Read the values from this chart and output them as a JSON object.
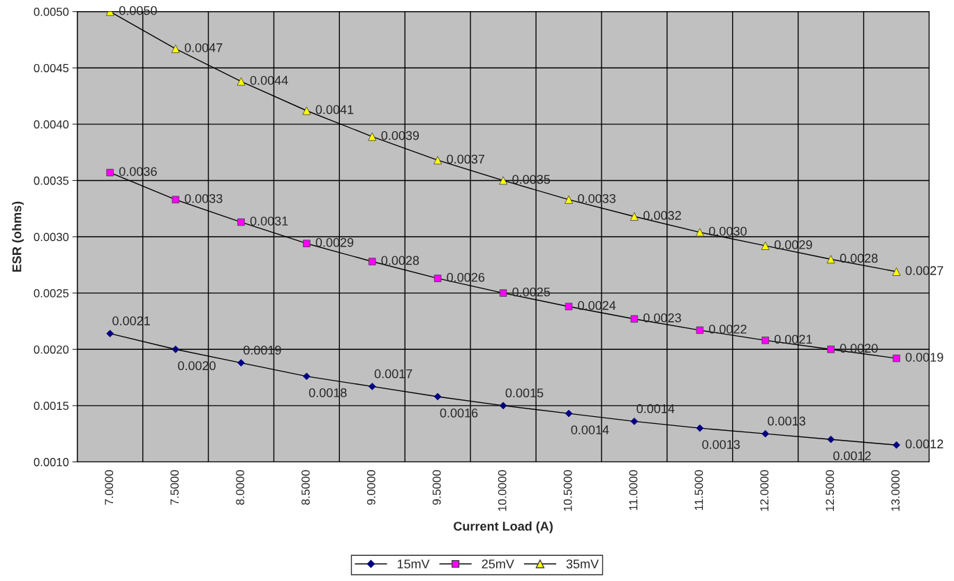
{
  "chart_data": {
    "type": "line",
    "xlabel": "Current Load (A)",
    "ylabel": "ESR (ohms)",
    "categories": [
      "7.0000",
      "7.5000",
      "8.0000",
      "8.5000",
      "9.0000",
      "9.5000",
      "10.0000",
      "10.5000",
      "11.0000",
      "11.5000",
      "12.0000",
      "12.5000",
      "13.0000"
    ],
    "series": [
      {
        "name": "15mV",
        "color": "#000080",
        "marker": "diamond",
        "values": [
          0.00214,
          0.002,
          0.00188,
          0.00176,
          0.00167,
          0.00158,
          0.0015,
          0.00143,
          0.00136,
          0.0013,
          0.00125,
          0.0012,
          0.00115
        ],
        "value_labels": [
          "0.0021",
          "0.0020",
          "0.0019",
          "0.0018",
          "0.0017",
          "0.0016",
          "0.0015",
          "0.0014",
          "0.0014",
          "0.0013",
          "0.0013",
          "0.0012",
          "0.0012"
        ]
      },
      {
        "name": "25mV",
        "color": "#ff00ff",
        "marker": "square",
        "values": [
          0.00357,
          0.00333,
          0.00313,
          0.00294,
          0.00278,
          0.00263,
          0.0025,
          0.00238,
          0.00227,
          0.00217,
          0.00208,
          0.002,
          0.00192
        ],
        "value_labels": [
          "0.0036",
          "0.0033",
          "0.0031",
          "0.0029",
          "0.0028",
          "0.0026",
          "0.0025",
          "0.0024",
          "0.0023",
          "0.0022",
          "0.0021",
          "0.0020",
          "0.0019"
        ]
      },
      {
        "name": "35mV",
        "color": "#ffff00",
        "marker": "triangle",
        "values": [
          0.005,
          0.00467,
          0.00438,
          0.00412,
          0.00389,
          0.00368,
          0.0035,
          0.00333,
          0.00318,
          0.00304,
          0.00292,
          0.0028,
          0.00269
        ],
        "value_labels": [
          "0.0050",
          "0.0047",
          "0.0044",
          "0.0041",
          "0.0039",
          "0.0037",
          "0.0035",
          "0.0033",
          "0.0032",
          "0.0030",
          "0.0029",
          "0.0028",
          "0.0027"
        ]
      }
    ],
    "ylim": [
      0.001,
      0.005
    ],
    "yticks": [
      {
        "value": 0.001,
        "label": "0.0010"
      },
      {
        "value": 0.0015,
        "label": "0.0015"
      },
      {
        "value": 0.002,
        "label": "0.0020"
      },
      {
        "value": 0.0025,
        "label": "0.0025"
      },
      {
        "value": 0.003,
        "label": "0.0030"
      },
      {
        "value": 0.0035,
        "label": "0.0035"
      },
      {
        "value": 0.004,
        "label": "0.0040"
      },
      {
        "value": 0.0045,
        "label": "0.0045"
      },
      {
        "value": 0.005,
        "label": "0.0050"
      }
    ],
    "grid": true,
    "legend": "bottom",
    "line_style": "solid"
  }
}
